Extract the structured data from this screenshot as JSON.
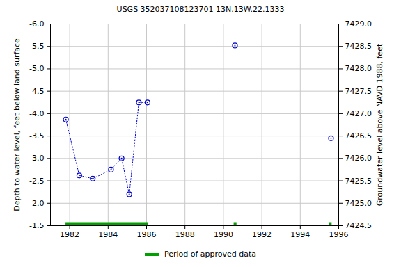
{
  "chart_data": {
    "type": "scatter",
    "title": "USGS 352037108123701 13N.13W.22.1333",
    "x_label": null,
    "y_label": "Depth to water level, feet below land surface",
    "y2_label": "Groundwater level above NAVD 1988, feet",
    "xlim": [
      1981,
      1996
    ],
    "xticks": [
      1982,
      1984,
      1986,
      1988,
      1990,
      1992,
      1994,
      1996
    ],
    "ylim": [
      -1.5,
      -6.0
    ],
    "yticks": [
      {
        "value": -1.5,
        "label": "-1.5"
      },
      {
        "value": -2.0,
        "label": "-2.0"
      },
      {
        "value": -2.5,
        "label": "-2.5"
      },
      {
        "value": -3.0,
        "label": "-3.0"
      },
      {
        "value": -3.5,
        "label": "-3.5"
      },
      {
        "value": -4.0,
        "label": "-4.0"
      },
      {
        "value": -4.5,
        "label": "-4.5"
      },
      {
        "value": -5.0,
        "label": "-5.0"
      },
      {
        "value": -5.5,
        "label": "-5.5"
      },
      {
        "value": -6.0,
        "label": "-6.0"
      }
    ],
    "y2lim": [
      7424.5,
      7429.0
    ],
    "y2ticks": [
      {
        "value": 7424.5,
        "label": "7424.5"
      },
      {
        "value": 7425.0,
        "label": "7425.0"
      },
      {
        "value": 7425.5,
        "label": "7425.5"
      },
      {
        "value": 7426.0,
        "label": "7426.0"
      },
      {
        "value": 7426.5,
        "label": "7426.5"
      },
      {
        "value": 7427.0,
        "label": "7427.0"
      },
      {
        "value": 7427.5,
        "label": "7427.5"
      },
      {
        "value": 7428.0,
        "label": "7428.0"
      },
      {
        "value": 7428.5,
        "label": "7428.5"
      },
      {
        "value": 7429.0,
        "label": "7429.0"
      }
    ],
    "grid": true,
    "series": [
      {
        "type": "line",
        "marker": "circle",
        "line_style": "dotted",
        "color": "#0000cc",
        "x": [
          1981.8,
          1982.5,
          1983.2,
          1984.15,
          1984.7,
          1985.1,
          1985.6,
          1986.05
        ],
        "values": [
          -3.87,
          -2.62,
          -2.55,
          -2.75,
          -3.0,
          -2.2,
          -4.25,
          -4.25
        ]
      },
      {
        "type": "scatter",
        "marker": "circle",
        "color": "#0000cc",
        "x": [
          1990.6,
          1995.6
        ],
        "values": [
          -5.52,
          -3.45
        ]
      }
    ],
    "approved_periods": {
      "name": "Period of approved data",
      "color": "#00a000",
      "ranges": [
        [
          1981.8,
          1986.1
        ],
        [
          1990.55,
          1990.7
        ],
        [
          1995.5,
          1995.65
        ]
      ]
    }
  }
}
